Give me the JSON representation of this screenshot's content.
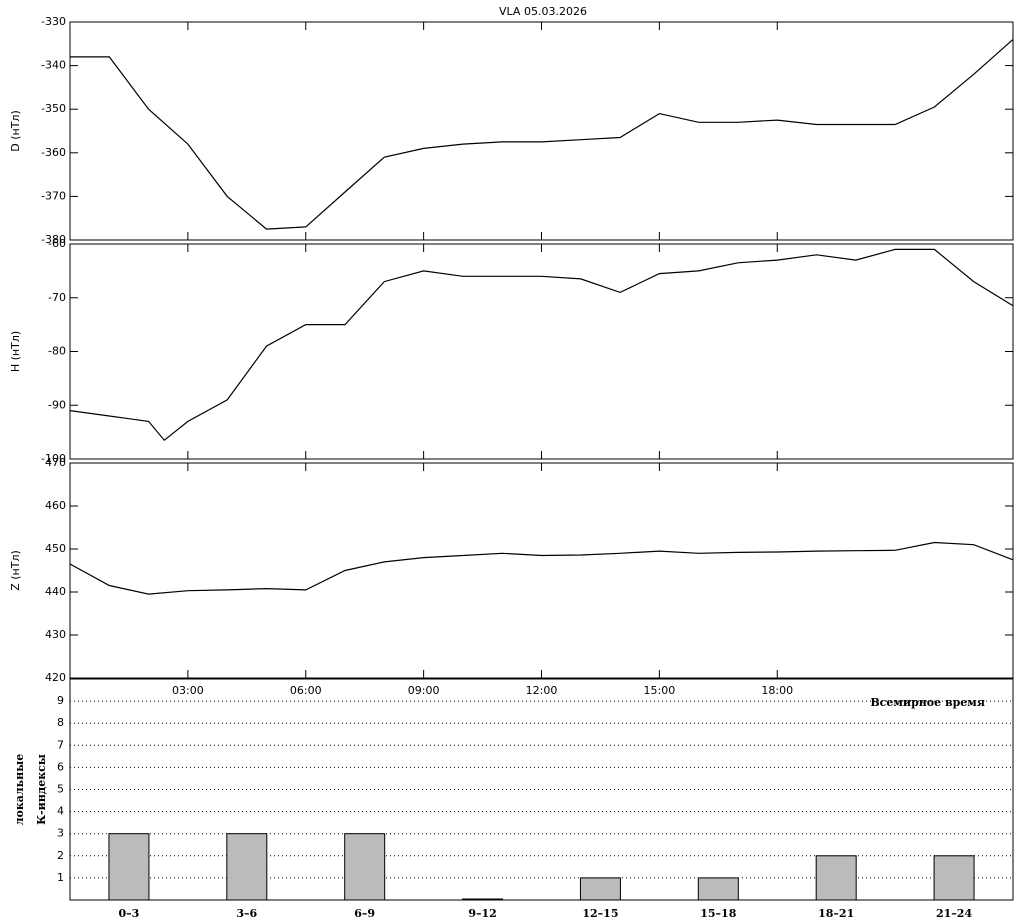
{
  "chart_data": [
    {
      "type": "line",
      "title": "VLA   05.03.2026",
      "ylabel": "D (нТл)",
      "color": "#000000",
      "x": [
        0,
        1,
        2,
        3,
        4,
        5,
        6,
        7,
        8,
        9,
        10,
        11,
        12,
        13,
        14,
        15,
        16,
        17,
        18,
        19,
        20,
        21,
        22,
        23,
        24
      ],
      "values": [
        -338,
        -338,
        -350,
        -358,
        -370,
        -377.5,
        -377,
        -369,
        -361,
        -359,
        -358,
        -357.5,
        -357.5,
        -357,
        -356.5,
        -351,
        -353,
        -353,
        -352.5,
        -353.5,
        -353.5,
        -353.5,
        -349.5,
        -342,
        -334
      ],
      "xlim": [
        0,
        24
      ],
      "ylim": [
        -330,
        -380
      ],
      "yticks": [
        -330,
        -340,
        -350,
        -360,
        -370,
        -380
      ]
    },
    {
      "type": "line",
      "ylabel": "H (нТл)",
      "color": "#000000",
      "x": [
        0,
        1,
        2,
        2.4,
        3,
        4,
        5,
        6,
        7,
        8,
        9,
        10,
        11,
        12,
        13,
        14,
        15,
        16,
        17,
        18,
        19,
        20,
        21,
        22,
        23,
        24
      ],
      "values": [
        -91,
        -92,
        -93,
        -96.5,
        -93,
        -89,
        -79,
        -75,
        -75,
        -67,
        -65,
        -66,
        -66,
        -66,
        -66.5,
        -69,
        -65.5,
        -65,
        -63.5,
        -63,
        -62,
        -63,
        -61,
        -61,
        -67,
        -71.5
      ],
      "xlim": [
        0,
        24
      ],
      "ylim": [
        -60,
        -100
      ],
      "yticks": [
        -60,
        -70,
        -80,
        -90,
        -100
      ]
    },
    {
      "type": "line",
      "ylabel": "Z (нТл)",
      "color": "#000000",
      "xlabel": "Всемирное время",
      "x": [
        0,
        1,
        2,
        3,
        4,
        5,
        6,
        7,
        8,
        9,
        10,
        11,
        12,
        13,
        14,
        15,
        16,
        17,
        18,
        19,
        20,
        21,
        22,
        23,
        24
      ],
      "values": [
        446.5,
        441.5,
        439.5,
        440.3,
        440.5,
        440.8,
        440.5,
        445,
        447,
        448,
        448.5,
        449,
        448.5,
        448.6,
        449,
        449.5,
        449,
        449.2,
        449.3,
        449.5,
        449.6,
        449.7,
        451.5,
        451,
        447.5
      ],
      "xlim": [
        0,
        24
      ],
      "ylim": [
        470,
        420
      ],
      "yticks": [
        470,
        460,
        450,
        440,
        430,
        420
      ],
      "xticks": [
        {
          "value": 3,
          "label": "03:00"
        },
        {
          "value": 6,
          "label": "06:00"
        },
        {
          "value": 9,
          "label": "09:00"
        },
        {
          "value": 12,
          "label": "12:00"
        },
        {
          "value": 15,
          "label": "15:00"
        },
        {
          "value": 18,
          "label": "18:00"
        }
      ]
    },
    {
      "type": "bar",
      "ylabel": [
        "локальные",
        "К-индексы"
      ],
      "color": "#bbbbbb",
      "grid": true,
      "categories": [
        "0–3",
        "3–6",
        "6–9",
        "9–12",
        "12–15",
        "15–18",
        "18–21",
        "21–24"
      ],
      "values": [
        3,
        3,
        3,
        0,
        1,
        1,
        2,
        2
      ],
      "ylim": [
        0,
        10
      ],
      "yticks": [
        1,
        2,
        3,
        4,
        5,
        6,
        7,
        8,
        9
      ]
    }
  ]
}
